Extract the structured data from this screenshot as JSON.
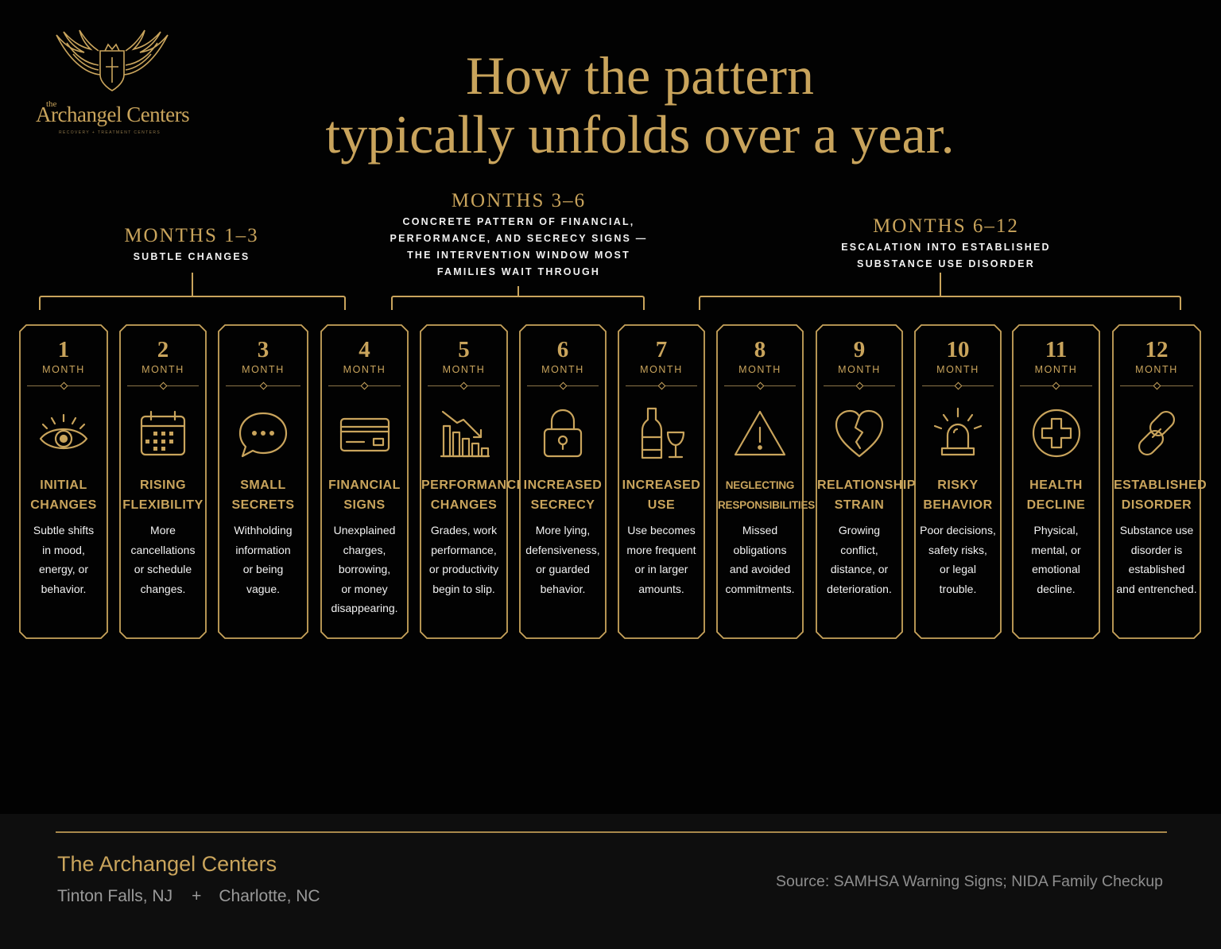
{
  "logo": {
    "small": "the",
    "name": "Archangel Centers",
    "tagline": "RECOVERY + TREATMENT CENTERS"
  },
  "title": {
    "line1": "How the pattern",
    "line2": "typically unfolds over a year."
  },
  "phases": [
    {
      "label": "MONTHS 1–3",
      "desc": "SUBTLE CHANGES"
    },
    {
      "label": "MONTHS 3–6",
      "desc": "CONCRETE PATTERN OF FINANCIAL,\nPERFORMANCE, AND SECRECY SIGNS —\nTHE INTERVENTION WINDOW MOST\nFAMILIES WAIT THROUGH"
    },
    {
      "label": "MONTHS 6–12",
      "desc": "ESCALATION INTO ESTABLISHED\nSUBSTANCE USE DISORDER"
    }
  ],
  "month_word": "MONTH",
  "cards": [
    {
      "num": "1",
      "icon": "eye-icon",
      "title": "INITIAL\nCHANGES",
      "desc": "Subtle shifts\nin mood,\nenergy, or\nbehavior."
    },
    {
      "num": "2",
      "icon": "calendar-icon",
      "title": "RISING\nFLEXIBILITY",
      "desc": "More\ncancellations\nor schedule\nchanges."
    },
    {
      "num": "3",
      "icon": "speech-bubble-icon",
      "title": "SMALL\nSECRETS",
      "desc": "Withholding\ninformation\nor being\nvague."
    },
    {
      "num": "4",
      "icon": "credit-card-icon",
      "title": "FINANCIAL\nSIGNS",
      "desc": "Unexplained\ncharges,\nborrowing,\nor money\ndisappearing."
    },
    {
      "num": "5",
      "icon": "declining-chart-icon",
      "title": "PERFORMANCE\nCHANGES",
      "desc": "Grades, work\nperformance,\nor productivity\nbegin to slip."
    },
    {
      "num": "6",
      "icon": "padlock-icon",
      "title": "INCREASED\nSECRECY",
      "desc": "More lying,\ndefensiveness,\nor guarded\nbehavior."
    },
    {
      "num": "7",
      "icon": "bottle-and-glass-icon",
      "title": "INCREASED\nUSE",
      "desc": "Use becomes\nmore frequent\nor in larger\namounts."
    },
    {
      "num": "8",
      "icon": "warning-triangle-icon",
      "title": "NEGLECTING\nRESPONSIBILITIES",
      "desc": "Missed\nobligations\nand avoided\ncommitments."
    },
    {
      "num": "9",
      "icon": "broken-heart-icon",
      "title": "RELATIONSHIP\nSTRAIN",
      "desc": "Growing\nconflict,\ndistance, or\ndeterioration."
    },
    {
      "num": "10",
      "icon": "siren-icon",
      "title": "RISKY\nBEHAVIOR",
      "desc": "Poor decisions,\nsafety risks,\nor legal\ntrouble."
    },
    {
      "num": "11",
      "icon": "medical-cross-icon",
      "title": "HEALTH\nDECLINE",
      "desc": "Physical,\nmental, or\nemotional\ndecline."
    },
    {
      "num": "12",
      "icon": "chain-link-icon",
      "title": "ESTABLISHED\nDISORDER",
      "desc": "Substance use\ndisorder is\nestablished\nand entrenched."
    }
  ],
  "footer": {
    "name": "The Archangel Centers",
    "location1": "Tinton Falls, NJ",
    "separator": "+",
    "location2": "Charlotte, NC",
    "source": "Source: SAMHSA Warning Signs; NIDA Family Checkup"
  },
  "colors": {
    "gold": "#c9a45c",
    "background": "#020202",
    "footer_bg": "#0e0e0e"
  }
}
